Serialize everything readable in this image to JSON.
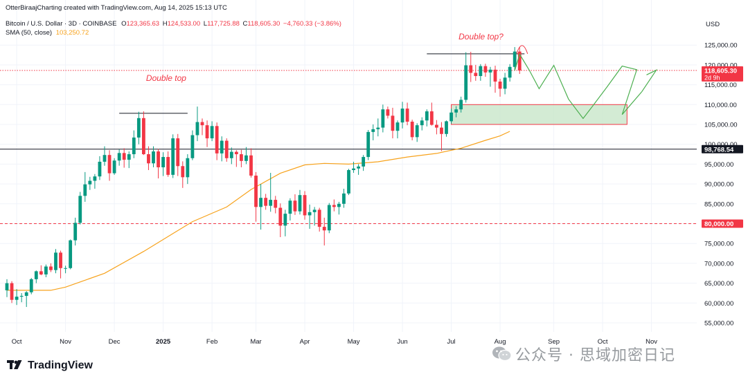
{
  "header": {
    "published": "OtterBiraajCharting created with TradingView.com, Aug 14, 2025 15:13 UTC",
    "symbol": "Bitcoin / U.S. Dollar · 3D · COINBASE",
    "ohlc": {
      "o_label": "O",
      "o": "123,365.63",
      "h_label": "H",
      "h": "124,533.00",
      "l_label": "L",
      "l": "117,725.88",
      "c_label": "C",
      "c": "118,605.30",
      "change": "−4,760.33 (−3.86%)"
    },
    "sma_label": "SMA (50, close)",
    "sma_value": "103,250.72"
  },
  "branding": {
    "logo_text": "TradingView"
  },
  "watermark": "公众号 · 思域加密日记",
  "colors": {
    "up": "#089981",
    "down": "#f23645",
    "sma": "#f7a21b",
    "projection": "#4caf50",
    "zone_fill": "#c8e6c9",
    "zone_border": "#f23645",
    "annotation": "#f23645"
  },
  "chart_data": {
    "type": "candlestick",
    "currency": "USD",
    "timeframe": "3D",
    "y_range": [
      52000,
      128000
    ],
    "y_ticks": [
      55000,
      60000,
      65000,
      70000,
      75000,
      80000,
      85000,
      90000,
      95000,
      100000,
      105000,
      110000,
      115000,
      120000,
      125000
    ],
    "x_ticks": [
      "Oct",
      "Nov",
      "Dec",
      "2025",
      "Feb",
      "Mar",
      "Apr",
      "May",
      "Jun",
      "Jul",
      "Aug",
      "Sep",
      "Oct",
      "Nov"
    ],
    "x_tick_index": [
      2,
      12,
      22,
      32,
      42,
      51,
      61,
      71,
      81,
      91,
      101,
      112,
      122,
      132
    ],
    "candles": [
      [
        63200,
        66000,
        61500,
        65000
      ],
      [
        65000,
        65500,
        60000,
        60800
      ],
      [
        60800,
        63500,
        59500,
        61600
      ],
      [
        61600,
        62500,
        60200,
        61800
      ],
      [
        61800,
        63000,
        59000,
        62700
      ],
      [
        62700,
        66300,
        62200,
        66000
      ],
      [
        66000,
        68200,
        65000,
        68000
      ],
      [
        68000,
        69500,
        67000,
        67200
      ],
      [
        67200,
        69700,
        66500,
        69200
      ],
      [
        69200,
        70000,
        67800,
        68300
      ],
      [
        68300,
        73600,
        67500,
        72700
      ],
      [
        72700,
        73200,
        66200,
        68800
      ],
      [
        68800,
        69400,
        67500,
        68800
      ],
      [
        68800,
        76000,
        68500,
        75800
      ],
      [
        75800,
        81500,
        74500,
        80200
      ],
      [
        80200,
        88000,
        79800,
        87000
      ],
      [
        87000,
        93000,
        85500,
        89900
      ],
      [
        89900,
        91800,
        88500,
        90800
      ],
      [
        90800,
        92500,
        88800,
        91900
      ],
      [
        91900,
        97000,
        91000,
        95600
      ],
      [
        95600,
        99500,
        94600,
        97300
      ],
      [
        97300,
        98500,
        90800,
        92700
      ],
      [
        92700,
        96500,
        92300,
        95900
      ],
      [
        95900,
        98700,
        94600,
        97800
      ],
      [
        97800,
        99000,
        94100,
        96100
      ],
      [
        96100,
        98200,
        94000,
        97500
      ],
      [
        97500,
        103500,
        96500,
        101700
      ],
      [
        101700,
        108200,
        100000,
        106600
      ],
      [
        106600,
        108300,
        97300,
        97500
      ],
      [
        97500,
        99500,
        93500,
        95200
      ],
      [
        95200,
        99500,
        94200,
        98200
      ],
      [
        98200,
        98800,
        91400,
        94200
      ],
      [
        94200,
        98000,
        92000,
        96800
      ],
      [
        96800,
        98200,
        91800,
        92300
      ],
      [
        92300,
        102500,
        91500,
        101500
      ],
      [
        101500,
        102600,
        92000,
        94500
      ],
      [
        94500,
        95700,
        89000,
        91700
      ],
      [
        91700,
        97500,
        90000,
        96500
      ],
      [
        96500,
        103500,
        96000,
        102300
      ],
      [
        102300,
        109500,
        100800,
        105600
      ],
      [
        105600,
        106500,
        102300,
        104800
      ],
      [
        104800,
        106000,
        99300,
        101500
      ],
      [
        101500,
        105800,
        100800,
        104600
      ],
      [
        104600,
        105500,
        96000,
        97700
      ],
      [
        97700,
        102000,
        95700,
        100900
      ],
      [
        100900,
        101500,
        95600,
        96500
      ],
      [
        96500,
        99200,
        95000,
        98100
      ],
      [
        98100,
        98500,
        94300,
        97500
      ],
      [
        97500,
        98600,
        94200,
        95800
      ],
      [
        95800,
        99300,
        95000,
        97200
      ],
      [
        97200,
        99000,
        91600,
        92100
      ],
      [
        92100,
        93000,
        80500,
        84200
      ],
      [
        84200,
        90000,
        78500,
        86500
      ],
      [
        86500,
        87500,
        83500,
        84500
      ],
      [
        84500,
        92800,
        83000,
        86000
      ],
      [
        86000,
        87000,
        82600,
        84000
      ],
      [
        84000,
        85100,
        76600,
        79500
      ],
      [
        79500,
        83500,
        76800,
        82500
      ],
      [
        82500,
        86400,
        80800,
        85800
      ],
      [
        85800,
        87400,
        82200,
        83100
      ],
      [
        83100,
        88500,
        82300,
        87200
      ],
      [
        87200,
        88200,
        81000,
        82100
      ],
      [
        82100,
        84800,
        78700,
        82900
      ],
      [
        82900,
        84200,
        79500,
        83500
      ],
      [
        83500,
        84000,
        78000,
        79200
      ],
      [
        79200,
        81500,
        74500,
        78300
      ],
      [
        78300,
        85200,
        77600,
        84700
      ],
      [
        84700,
        86100,
        83100,
        84200
      ],
      [
        84200,
        85500,
        82300,
        85000
      ],
      [
        85000,
        88800,
        84000,
        87600
      ],
      [
        87600,
        93800,
        87200,
        93500
      ],
      [
        93500,
        95600,
        92800,
        93900
      ],
      [
        93900,
        95000,
        92300,
        94400
      ],
      [
        94400,
        97300,
        93300,
        96800
      ],
      [
        96800,
        103600,
        96000,
        103100
      ],
      [
        103100,
        105000,
        101000,
        103800
      ],
      [
        103800,
        106500,
        102000,
        104200
      ],
      [
        104200,
        110000,
        103000,
        108800
      ],
      [
        108800,
        109500,
        106500,
        107200
      ],
      [
        107200,
        109200,
        101500,
        103400
      ],
      [
        103400,
        106000,
        101500,
        105500
      ],
      [
        105500,
        110700,
        104000,
        109000
      ],
      [
        109000,
        110500,
        104800,
        105700
      ],
      [
        105700,
        106200,
        101000,
        101800
      ],
      [
        101800,
        105300,
        100600,
        104800
      ],
      [
        104800,
        106800,
        103500,
        106000
      ],
      [
        106000,
        108800,
        104500,
        108300
      ],
      [
        108300,
        110500,
        104700,
        104900
      ],
      [
        104900,
        106100,
        102500,
        104200
      ],
      [
        104200,
        105600,
        98300,
        102600
      ],
      [
        102600,
        106000,
        101900,
        105800
      ],
      [
        105800,
        109000,
        105200,
        108000
      ],
      [
        108000,
        109600,
        106800,
        108800
      ],
      [
        108800,
        112000,
        108000,
        111200
      ],
      [
        111200,
        123200,
        110500,
        119900
      ],
      [
        119900,
        123300,
        115700,
        118000
      ],
      [
        118000,
        120000,
        116000,
        117200
      ],
      [
        117200,
        120200,
        116000,
        119700
      ],
      [
        119700,
        120300,
        117000,
        118100
      ],
      [
        118100,
        119500,
        114500,
        118800
      ],
      [
        118800,
        119800,
        113000,
        115800
      ],
      [
        115800,
        116500,
        112000,
        114000
      ],
      [
        114000,
        118000,
        112600,
        116800
      ],
      [
        116800,
        120200,
        115800,
        119500
      ],
      [
        119500,
        124500,
        118700,
        123365.63
      ],
      [
        123365.63,
        124533,
        117725.88,
        118605.3
      ]
    ],
    "sma": [
      [
        0,
        63200
      ],
      [
        9,
        63200
      ],
      [
        12,
        64000
      ],
      [
        20,
        67500
      ],
      [
        28,
        73000
      ],
      [
        38,
        80500
      ],
      [
        45,
        84200
      ],
      [
        50,
        88600
      ],
      [
        56,
        92700
      ],
      [
        61,
        94800
      ],
      [
        65,
        95200
      ],
      [
        70,
        95000
      ],
      [
        76,
        95600
      ],
      [
        82,
        96800
      ],
      [
        88,
        97700
      ],
      [
        93,
        99000
      ],
      [
        98,
        101000
      ],
      [
        101,
        102100
      ],
      [
        103,
        103250.72
      ]
    ],
    "levels": [
      {
        "price": 118605.3,
        "label": "118,605.30",
        "sublabel": "2d 9h",
        "style": "dotted",
        "color": "#f23645"
      },
      {
        "price": 98768.54,
        "label": "98,768.54",
        "style": "solid",
        "color": "#131722"
      },
      {
        "price": 80000.0,
        "label": "80,000.00",
        "style": "dashed",
        "color": "#f23645"
      }
    ],
    "resistance_lines": [
      {
        "from_index": 23,
        "to_index": 37,
        "price": 107800
      },
      {
        "from_index": 86,
        "to_index": 106,
        "price": 122800
      }
    ],
    "support_zone": {
      "from_index": 91,
      "to_index": 127,
      "top": 110000,
      "bottom": 105000
    },
    "projection": [
      [
        104,
        118600
      ],
      [
        105,
        122700
      ],
      [
        107,
        118600
      ],
      [
        109,
        114000
      ],
      [
        112,
        119900
      ],
      [
        115,
        111400
      ],
      [
        118,
        106500
      ],
      [
        120,
        109700
      ],
      [
        123,
        114600
      ],
      [
        126,
        119700
      ],
      [
        129,
        118800
      ],
      [
        126,
        107500
      ],
      [
        130,
        113200
      ],
      [
        133,
        118700
      ],
      [
        131,
        117500
      ]
    ],
    "annotations": [
      {
        "text": "Double top",
        "index": 28.5,
        "price": 116000
      },
      {
        "text": "Double top?",
        "index": 92.5,
        "price": 126400
      }
    ]
  }
}
